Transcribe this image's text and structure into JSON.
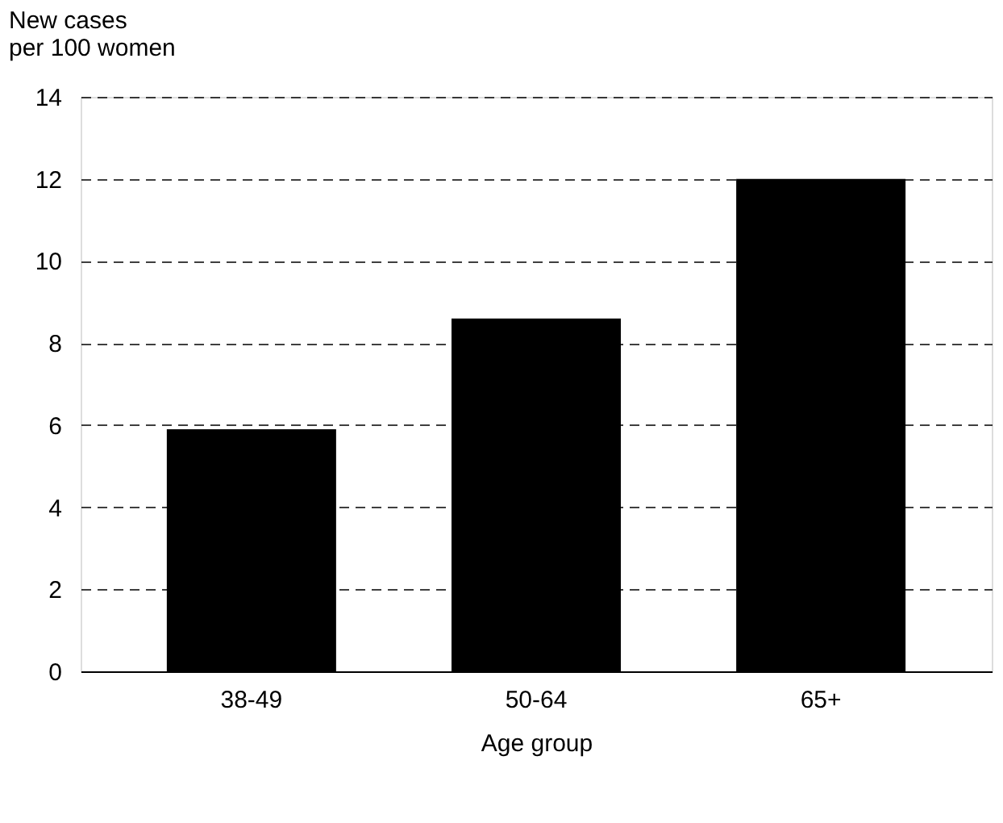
{
  "chart_data": {
    "type": "bar",
    "categories": [
      "38-49",
      "50-64",
      "65+"
    ],
    "values": [
      5.9,
      8.6,
      12.0
    ],
    "color": "#000000",
    "xlabel": "Age group",
    "ylabel": "New cases\nper 100 women",
    "ylim": [
      0,
      14
    ],
    "yticks": [
      0,
      2,
      4,
      6,
      8,
      10,
      12,
      14
    ],
    "grid": "y"
  }
}
